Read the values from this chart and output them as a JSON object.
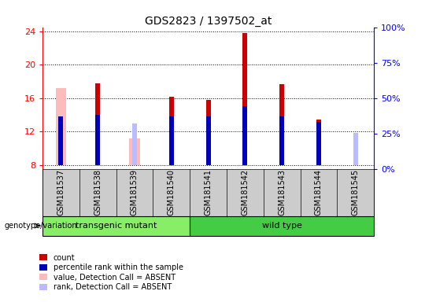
{
  "title": "GDS2823 / 1397502_at",
  "samples": [
    "GSM181537",
    "GSM181538",
    "GSM181539",
    "GSM181540",
    "GSM181541",
    "GSM181542",
    "GSM181543",
    "GSM181544",
    "GSM181545"
  ],
  "ylim_left": [
    7.5,
    24.5
  ],
  "ylim_right": [
    0,
    100
  ],
  "yticks_left": [
    8,
    12,
    16,
    20,
    24
  ],
  "yticks_right": [
    0,
    25,
    50,
    75,
    100
  ],
  "count_values": [
    null,
    17.8,
    null,
    16.2,
    15.8,
    23.8,
    17.7,
    13.4,
    null
  ],
  "percentile_values": [
    13.8,
    14.0,
    null,
    13.8,
    13.8,
    15.0,
    13.8,
    13.2,
    null
  ],
  "absent_value_values": [
    17.2,
    null,
    11.2,
    null,
    null,
    null,
    null,
    null,
    null
  ],
  "absent_rank_values": [
    null,
    null,
    13.0,
    null,
    null,
    null,
    null,
    null,
    11.8
  ],
  "base_value": 8.0,
  "count_color": "#cc0000",
  "percentile_color": "#0000bb",
  "absent_value_color": "#ffbbbb",
  "absent_rank_color": "#bbbbff",
  "transgenic_indices": [
    0,
    1,
    2,
    3
  ],
  "wildtype_indices": [
    4,
    5,
    6,
    7,
    8
  ],
  "transgenic_color": "#88ee66",
  "wildtype_color": "#44cc44",
  "group_label_color": "#66dd55",
  "narrow_bar_width": 0.13,
  "absent_bar_width": 0.28
}
